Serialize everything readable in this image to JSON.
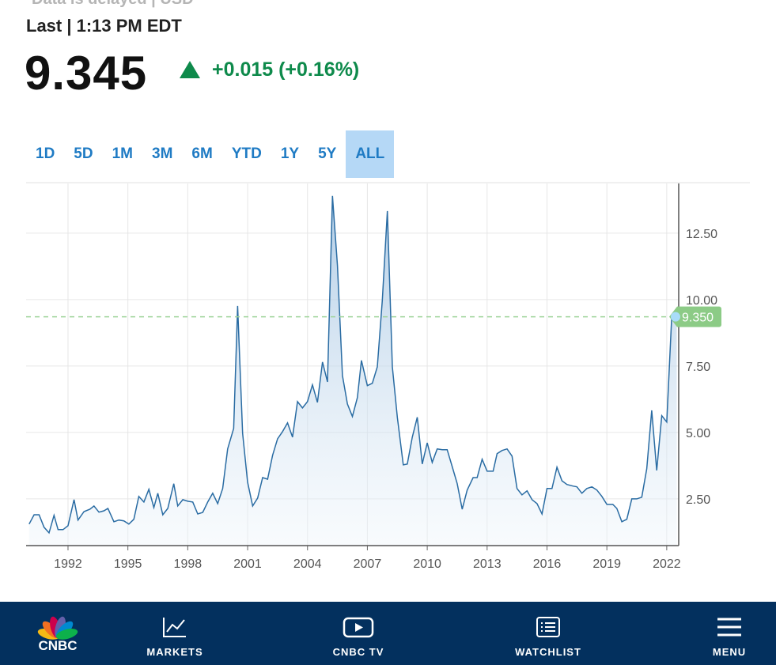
{
  "header": {
    "delayed_note": "Data is delayed | USD",
    "last_time": "Last | 1:13 PM EDT",
    "price": "9.345",
    "change": "+0.015 (+0.16%)"
  },
  "ranges": [
    "1D",
    "5D",
    "1M",
    "3M",
    "6M",
    "YTD",
    "1Y",
    "5Y",
    "ALL"
  ],
  "chart_data": {
    "type": "area",
    "x": [
      1990.05,
      1990.3,
      1990.55,
      1990.8,
      1991.05,
      1991.3,
      1991.5,
      1991.75,
      1992.0,
      1992.3,
      1992.5,
      1992.8,
      1993.1,
      1993.3,
      1993.55,
      1993.8,
      1994.0,
      1994.3,
      1994.55,
      1994.8,
      1995.05,
      1995.3,
      1995.55,
      1995.8,
      1996.05,
      1996.3,
      1996.5,
      1996.75,
      1997.0,
      1997.3,
      1997.5,
      1997.75,
      1998.0,
      1998.25,
      1998.5,
      1998.75,
      1999.0,
      1999.25,
      1999.5,
      1999.75,
      2000.0,
      2000.3,
      2000.5,
      2000.75,
      2001.0,
      2001.25,
      2001.5,
      2001.75,
      2002.0,
      2002.25,
      2002.5,
      2002.75,
      2003.0,
      2003.25,
      2003.5,
      2003.75,
      2004.0,
      2004.25,
      2004.5,
      2004.75,
      2005.0,
      2005.25,
      2005.5,
      2005.75,
      2006.0,
      2006.25,
      2006.5,
      2006.7,
      2007.0,
      2007.25,
      2007.5,
      2007.75,
      2008.0,
      2008.25,
      2008.5,
      2008.8,
      2009.0,
      2009.25,
      2009.5,
      2009.75,
      2010.0,
      2010.25,
      2010.5,
      2010.75,
      2011.0,
      2011.25,
      2011.5,
      2011.75,
      2012.0,
      2012.3,
      2012.5,
      2012.75,
      2013.0,
      2013.3,
      2013.5,
      2013.75,
      2014.0,
      2014.25,
      2014.5,
      2014.75,
      2015.0,
      2015.25,
      2015.5,
      2015.75,
      2016.0,
      2016.25,
      2016.5,
      2016.75,
      2017.0,
      2017.3,
      2017.5,
      2017.75,
      2018.0,
      2018.25,
      2018.5,
      2018.75,
      2019.0,
      2019.3,
      2019.5,
      2019.75,
      2020.0,
      2020.25,
      2020.5,
      2020.75,
      2021.0,
      2021.25,
      2021.5,
      2021.75,
      2022.0,
      2022.25,
      2022.5
    ],
    "series": [
      {
        "color": "#2a6ca3",
        "values": [
          1.55,
          1.9,
          1.9,
          1.43,
          1.22,
          1.88,
          1.34,
          1.34,
          1.49,
          2.47,
          1.7,
          2.02,
          2.11,
          2.23,
          2.0,
          2.05,
          2.14,
          1.64,
          1.7,
          1.67,
          1.55,
          1.73,
          2.59,
          2.38,
          2.86,
          2.17,
          2.71,
          1.9,
          2.14,
          3.07,
          2.23,
          2.47,
          2.41,
          2.38,
          1.93,
          1.99,
          2.38,
          2.71,
          2.32,
          2.89,
          4.38,
          5.15,
          9.76,
          4.97,
          3.13,
          2.23,
          2.53,
          3.3,
          3.24,
          4.14,
          4.76,
          5.03,
          5.36,
          4.82,
          6.16,
          5.92,
          6.16,
          6.79,
          6.13,
          7.65,
          6.9,
          13.9,
          11.28,
          7.14,
          6.07,
          5.6,
          6.31,
          7.71,
          6.76,
          6.85,
          7.47,
          9.97,
          13.33,
          7.47,
          5.57,
          3.78,
          3.81,
          4.82,
          5.57,
          3.81,
          4.61,
          3.87,
          4.38,
          4.35,
          4.35,
          3.72,
          3.07,
          2.11,
          2.83,
          3.3,
          3.3,
          3.99,
          3.54,
          3.54,
          4.2,
          4.32,
          4.38,
          4.11,
          2.89,
          2.65,
          2.8,
          2.47,
          2.32,
          1.93,
          2.89,
          2.89,
          3.69,
          3.18,
          3.04,
          2.98,
          2.95,
          2.71,
          2.89,
          2.95,
          2.83,
          2.59,
          2.29,
          2.29,
          2.14,
          1.64,
          1.73,
          2.5,
          2.5,
          2.56,
          3.63,
          5.83,
          3.57,
          5.63,
          5.39,
          9.38,
          9.35
        ]
      }
    ],
    "xlim": [
      1989.9,
      2022.6
    ],
    "ylim": [
      0.74,
      14.37
    ],
    "xticks": [
      1992,
      1995,
      1998,
      2001,
      2004,
      2007,
      2010,
      2013,
      2016,
      2019,
      2022
    ],
    "yticks": [
      {
        "value": 2.5,
        "label": "2.50"
      },
      {
        "value": 5,
        "label": "5.00"
      },
      {
        "value": 7.5,
        "label": "7.50"
      },
      {
        "value": 10,
        "label": "10.00"
      },
      {
        "value": 12.5,
        "label": "12.50"
      }
    ],
    "last_value": {
      "value": 9.35,
      "label": "9.350"
    },
    "grid": true
  },
  "nav": {
    "logo": "CNBC",
    "items": [
      "MARKETS",
      "CNBC TV",
      "WATCHLIST",
      "MENU"
    ]
  }
}
